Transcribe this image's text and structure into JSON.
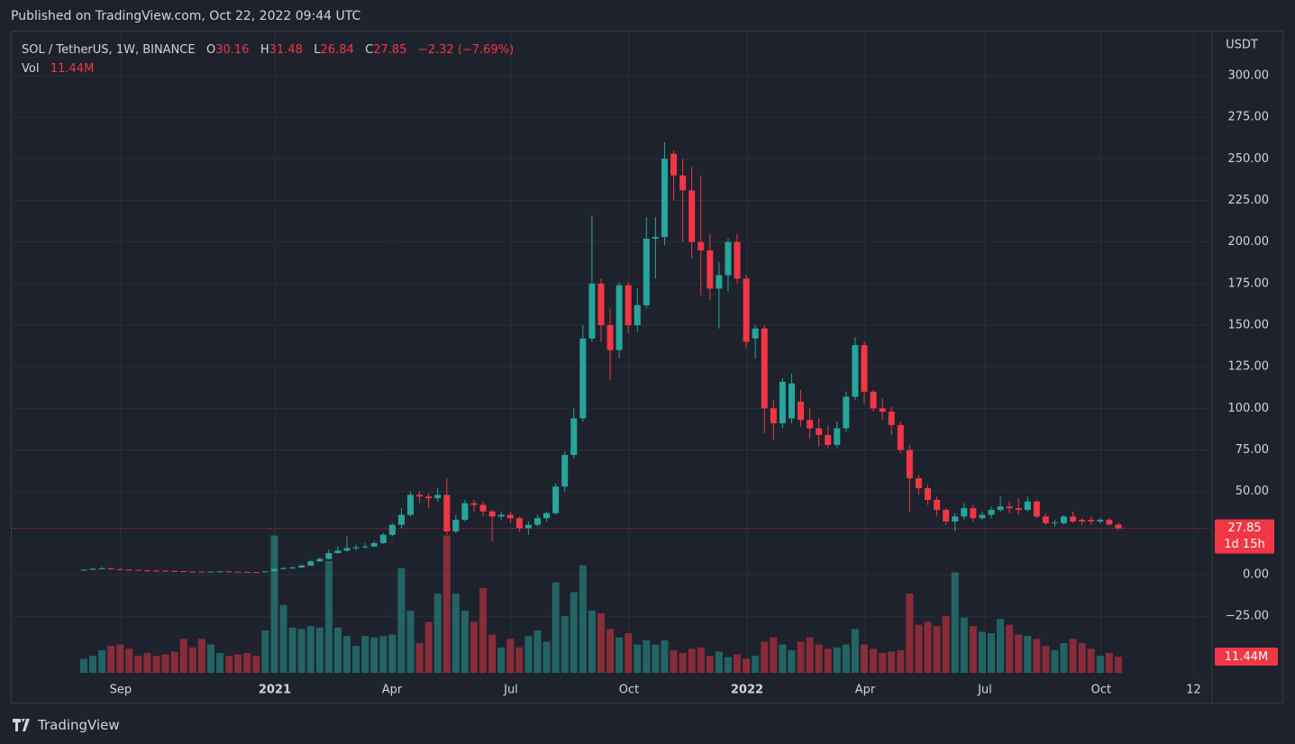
{
  "header": {
    "published": "Published on TradingView.com, Oct 22, 2022 09:44 UTC"
  },
  "footer": {
    "brand": "TradingView"
  },
  "chart_data": {
    "type": "candlestick",
    "title": "SOL / TetherUS, 1W, BINANCE",
    "ohlc_labels": [
      "O",
      "H",
      "L",
      "C"
    ],
    "change": "−2.32 (−7.69%)",
    "volume_name": "Vol",
    "volume_label": "11.44M",
    "countdown": "1d 15h",
    "currency": "USDT",
    "up_color": "#26a69a",
    "down_color": "#f23645",
    "grid": true,
    "open": [
      2.6,
      3.0,
      3.6,
      3.8,
      3.4,
      3.1,
      2.9,
      2.6,
      2.5,
      2.4,
      2.3,
      2.2,
      1.9,
      1.8,
      1.7,
      1.9,
      2.0,
      1.8,
      1.7,
      1.6,
      1.5,
      2.0,
      3.5,
      4.0,
      4.3,
      5.5,
      8.0,
      9.5,
      13.0,
      14.5,
      16.0,
      16.5,
      17.0,
      19.0,
      24.0,
      30.0,
      36.0,
      48.0,
      47.0,
      46.0,
      48.0,
      26.0,
      33.0,
      43.0,
      42.0,
      38.0,
      35.0,
      36.0,
      34.0,
      28.0,
      30.0,
      34.0,
      37.0,
      53.0,
      72.0,
      94.0,
      142.0,
      175.0,
      150.0,
      135.0,
      174.0,
      150.0,
      162.0,
      202.0,
      203.0,
      253.0,
      240.0,
      231.0,
      200.0,
      195.0,
      172.0,
      180.0,
      200.0,
      178.0,
      142.0,
      148.0,
      100.0,
      91.0,
      94.0,
      104.0,
      93.0,
      88.0,
      84.0,
      78.0,
      88.0,
      107.0,
      138.0,
      110.0,
      100.0,
      98.0,
      90.0,
      75.0,
      58.0,
      52.0,
      45.0,
      39.0,
      32.0,
      35.0,
      40.0,
      34.0,
      36.0,
      39.0,
      41.0,
      40.0,
      39.0,
      44.0,
      35.0,
      31.0,
      31.0,
      35.0,
      33.0,
      33.0,
      32.0,
      33.0,
      30.16
    ],
    "high": [
      3.3,
      3.9,
      4.7,
      4.2,
      3.6,
      3.3,
      3.1,
      2.9,
      2.7,
      2.6,
      2.5,
      2.3,
      2.1,
      2.0,
      2.1,
      2.3,
      2.2,
      1.9,
      1.8,
      1.7,
      2.2,
      3.9,
      4.6,
      4.8,
      6.2,
      9.0,
      10.5,
      15.0,
      17.0,
      23.0,
      18.0,
      19.0,
      20.5,
      25.0,
      31.0,
      40.0,
      50.0,
      50.0,
      49.0,
      52.0,
      58.0,
      36.0,
      45.0,
      45.0,
      44.0,
      39.0,
      38.0,
      38.0,
      35.0,
      32.0,
      36.0,
      38.0,
      55.0,
      74.0,
      100.0,
      150.0,
      216.0,
      178.0,
      160.0,
      176.0,
      176.0,
      172.0,
      215.0,
      215.0,
      260.0,
      255.0,
      250.0,
      245.0,
      240.0,
      205.0,
      188.0,
      202.0,
      205.0,
      180.0,
      150.0,
      150.0,
      105.0,
      118.0,
      121.0,
      111.0,
      100.0,
      94.0,
      90.0,
      92.0,
      110.0,
      143.0,
      140.0,
      111.0,
      106.0,
      101.0,
      92.0,
      78.0,
      60.0,
      54.0,
      47.0,
      40.0,
      37.0,
      43.0,
      42.0,
      38.0,
      41.0,
      47.0,
      44.0,
      46.0,
      47.0,
      45.0,
      37.0,
      33.0,
      36.0,
      38.0,
      34.0,
      35.0,
      34.0,
      34.0,
      31.48
    ],
    "low": [
      2.5,
      2.9,
      3.4,
      3.1,
      2.8,
      2.6,
      2.4,
      2.3,
      2.2,
      2.1,
      2.0,
      1.7,
      1.6,
      1.5,
      1.6,
      1.8,
      1.6,
      1.5,
      1.4,
      1.3,
      1.4,
      1.9,
      3.3,
      3.6,
      4.1,
      5.2,
      7.8,
      9.0,
      12.5,
      14.0,
      14.5,
      15.5,
      16.5,
      18.5,
      23.0,
      28.0,
      35.0,
      43.0,
      40.0,
      44.0,
      24.0,
      25.0,
      32.0,
      38.0,
      35.0,
      20.0,
      33.0,
      31.0,
      26.0,
      24.0,
      29.0,
      32.0,
      36.0,
      50.0,
      70.0,
      92.0,
      140.0,
      140.0,
      117.0,
      130.0,
      145.0,
      146.0,
      160.0,
      178.0,
      198.0,
      225.0,
      200.0,
      190.0,
      168.0,
      165.0,
      148.0,
      170.0,
      175.0,
      136.0,
      130.0,
      85.0,
      81.0,
      88.0,
      91.0,
      89.0,
      82.0,
      77.0,
      76.0,
      76.0,
      86.0,
      105.0,
      103.0,
      98.0,
      93.0,
      84.0,
      73.0,
      38.0,
      48.0,
      42.0,
      35.0,
      30.0,
      26.0,
      33.0,
      32.0,
      33.0,
      34.0,
      38.0,
      37.0,
      36.0,
      38.0,
      34.0,
      30.0,
      29.0,
      30.0,
      31.0,
      30.0,
      30.0,
      31.0,
      29.5,
      26.84
    ],
    "close": [
      3.0,
      3.6,
      3.8,
      3.4,
      3.1,
      2.9,
      2.6,
      2.5,
      2.4,
      2.3,
      2.2,
      1.9,
      1.8,
      1.7,
      1.9,
      2.0,
      1.8,
      1.7,
      1.6,
      1.5,
      2.0,
      3.5,
      4.0,
      4.3,
      5.5,
      8.0,
      9.5,
      13.0,
      14.5,
      16.0,
      16.5,
      17.0,
      19.0,
      24.0,
      30.0,
      36.0,
      48.0,
      47.0,
      46.0,
      48.0,
      26.0,
      33.0,
      43.0,
      42.0,
      38.0,
      35.0,
      36.0,
      34.0,
      28.0,
      30.0,
      34.0,
      37.0,
      53.0,
      72.0,
      94.0,
      142.0,
      175.0,
      150.0,
      135.0,
      174.0,
      150.0,
      162.0,
      202.0,
      203.0,
      250.0,
      240.0,
      231.0,
      200.0,
      195.0,
      172.0,
      180.0,
      200.0,
      178.0,
      140.0,
      148.0,
      100.0,
      91.0,
      116.0,
      115.0,
      93.0,
      88.0,
      84.0,
      78.0,
      88.0,
      107.0,
      138.0,
      110.0,
      100.0,
      98.0,
      90.0,
      75.0,
      58.0,
      52.0,
      45.0,
      39.0,
      32.0,
      35.0,
      40.0,
      34.0,
      36.0,
      39.0,
      41.0,
      40.0,
      39.0,
      44.0,
      35.0,
      31.0,
      31.5,
      35.0,
      32.0,
      32.0,
      32.0,
      33.0,
      30.16,
      27.85
    ],
    "volume": [
      10,
      12,
      16,
      19,
      20,
      17,
      12,
      14,
      12,
      13,
      15,
      24,
      18,
      24,
      20,
      14,
      12,
      13,
      14,
      12,
      30,
      97,
      48,
      32,
      31,
      33,
      32,
      79,
      32,
      26,
      19,
      26,
      25,
      26,
      27,
      74,
      44,
      21,
      36,
      56,
      97,
      56,
      44,
      36,
      60,
      27,
      18,
      24,
      18,
      26,
      30,
      22,
      64,
      40,
      57,
      76,
      44,
      42,
      31,
      25,
      28,
      20,
      23,
      20,
      23,
      16,
      14,
      17,
      18,
      12,
      15,
      11,
      13,
      10,
      12,
      22,
      25,
      20,
      16,
      22,
      25,
      20,
      17,
      18,
      20,
      31,
      20,
      17,
      14,
      15,
      16,
      56,
      34,
      36,
      33,
      40,
      71,
      39,
      33,
      29,
      28,
      38,
      34,
      27,
      26,
      24,
      19,
      16,
      21,
      24,
      21,
      17,
      12,
      14,
      11.44
    ],
    "ylim": [
      -60.6,
      326.5
    ],
    "y2lim": [
      -1.9,
      453
    ],
    "yticks": [
      {
        "value": 300,
        "label": "300.00"
      },
      {
        "value": 275,
        "label": "275.00"
      },
      {
        "value": 250,
        "label": "250.00"
      },
      {
        "value": 225,
        "label": "225.00"
      },
      {
        "value": 200,
        "label": "200.00"
      },
      {
        "value": 175,
        "label": "175.00"
      },
      {
        "value": 150,
        "label": "150.00"
      },
      {
        "value": 125,
        "label": "125.00"
      },
      {
        "value": 100,
        "label": "100.00"
      },
      {
        "value": 75,
        "label": "75.00"
      },
      {
        "value": 50,
        "label": "50.00"
      },
      {
        "value": 0,
        "label": "0.00"
      },
      {
        "value": -25,
        "label": "−25.00"
      }
    ],
    "xlim": [
      -7.94,
      124.33
    ],
    "xticks": [
      {
        "value": 4.07,
        "label": "Sep"
      },
      {
        "value": 21.05,
        "label": "2021"
      },
      {
        "value": 33.96,
        "label": "Apr"
      },
      {
        "value": 47.07,
        "label": "Jul"
      },
      {
        "value": 60.08,
        "label": "Oct"
      },
      {
        "value": 73.09,
        "label": "2022"
      },
      {
        "value": 86.1,
        "label": "Apr"
      },
      {
        "value": 99.3,
        "label": "Jul"
      },
      {
        "value": 112.1,
        "label": "Oct"
      },
      {
        "value": 122.3,
        "label": "12"
      }
    ]
  }
}
